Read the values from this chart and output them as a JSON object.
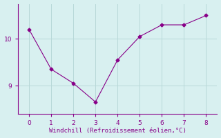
{
  "x": [
    0,
    1,
    2,
    3,
    4,
    5,
    6,
    7,
    8
  ],
  "y": [
    10.2,
    9.35,
    9.05,
    8.65,
    9.55,
    10.05,
    10.3,
    10.3,
    10.5
  ],
  "line_color": "#880088",
  "marker": "D",
  "marker_size": 2.5,
  "bg_color": "#d8f0f0",
  "grid_color": "#b8d8d8",
  "xlabel": "Windchill (Refroidissement éolien,°C)",
  "xlabel_color": "#880088",
  "tick_color": "#880088",
  "xlim": [
    -0.5,
    8.5
  ],
  "ylim": [
    8.4,
    10.75
  ],
  "yticks": [
    9,
    10
  ],
  "xticks": [
    0,
    1,
    2,
    3,
    4,
    5,
    6,
    7,
    8
  ]
}
